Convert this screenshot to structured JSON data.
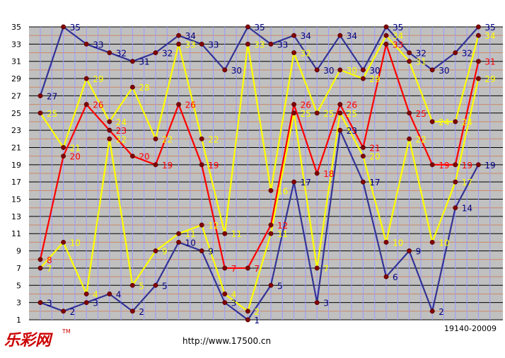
{
  "chart_data": {
    "type": "line",
    "title": "",
    "xlabel": "",
    "ylabel": "",
    "ylim": [
      1,
      35
    ],
    "y_ticks": [
      1,
      3,
      5,
      7,
      9,
      11,
      13,
      15,
      17,
      19,
      21,
      23,
      25,
      27,
      29,
      31,
      33,
      35
    ],
    "x": [
      1,
      2,
      3,
      4,
      5,
      6,
      7,
      8,
      9,
      10,
      11,
      12,
      13,
      14,
      15,
      16,
      17,
      18,
      19,
      20
    ],
    "grid": true,
    "legend": "none",
    "series": [
      {
        "color": "#333399",
        "label_color": "#000080",
        "values": [
          27,
          35,
          33,
          32,
          31,
          32,
          34,
          33,
          30,
          35,
          33,
          34,
          30,
          34,
          30,
          35,
          32,
          30,
          32,
          35
        ]
      },
      {
        "color": "#ffff00",
        "label_color": "#ffff00",
        "values": [
          25,
          21,
          29,
          24,
          28,
          22,
          33,
          22,
          11,
          33,
          16,
          32,
          25,
          30,
          29,
          34,
          31,
          24,
          24,
          34
        ]
      },
      {
        "color": "#ff0000",
        "label_color": "#ff0000",
        "values": [
          8,
          20,
          26,
          23,
          20,
          19,
          26,
          19,
          7,
          7,
          12,
          26,
          18,
          26,
          21,
          33,
          25,
          19,
          19,
          31
        ]
      },
      {
        "color": "#ffff00",
        "label_color": "#ffff00",
        "values": [
          7,
          10,
          4,
          22,
          5,
          9,
          11,
          12,
          4,
          2,
          11,
          25,
          7,
          25,
          20,
          10,
          22,
          10,
          17,
          29
        ]
      },
      {
        "color": "#333399",
        "label_color": "#000080",
        "values": [
          3,
          2,
          3,
          4,
          2,
          5,
          10,
          9,
          3,
          1,
          5,
          17,
          3,
          23,
          17,
          6,
          9,
          2,
          14,
          19
        ]
      }
    ]
  },
  "footer": {
    "logo_text": "乐彩网",
    "trademark": "TM",
    "url": "http://www.17500.cn",
    "range": "19140-20009"
  },
  "colors": {
    "plot_bg": "#c0c0c0",
    "marker_fill": "#800000",
    "vertical_grid": "#9999ff",
    "horizontal_grid": "#000000",
    "even_grid": "#cc8866",
    "logo": "#cc0000"
  }
}
